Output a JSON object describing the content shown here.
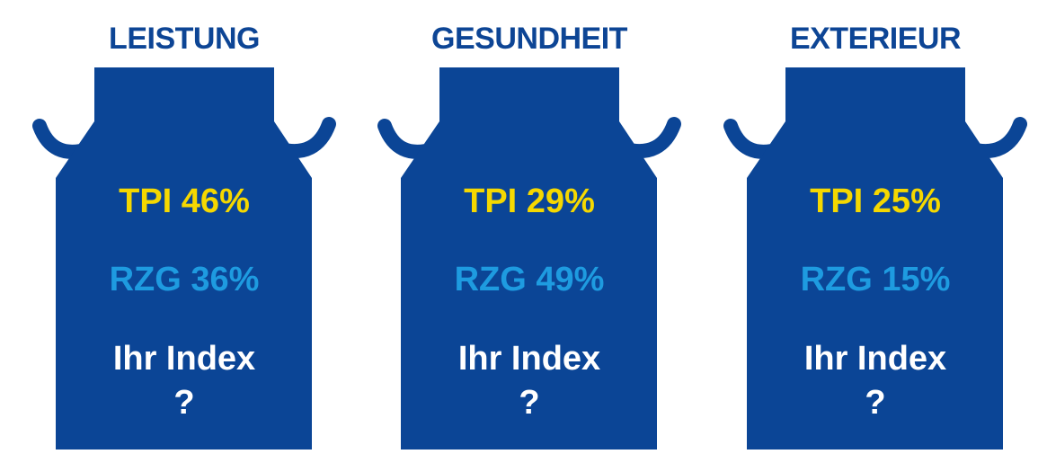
{
  "cans": [
    {
      "title": "LEISTUNG",
      "tpi": "TPI 46%",
      "rzg": "RZG 36%",
      "index": "Ihr Index",
      "question": "?"
    },
    {
      "title": "GESUNDHEIT",
      "tpi": "TPI 29%",
      "rzg": "RZG 49%",
      "index": "Ihr Index",
      "question": "?"
    },
    {
      "title": "EXTERIEUR",
      "tpi": "TPI 25%",
      "rzg": "RZG 15%",
      "index": "Ihr Index",
      "question": "?"
    }
  ]
}
